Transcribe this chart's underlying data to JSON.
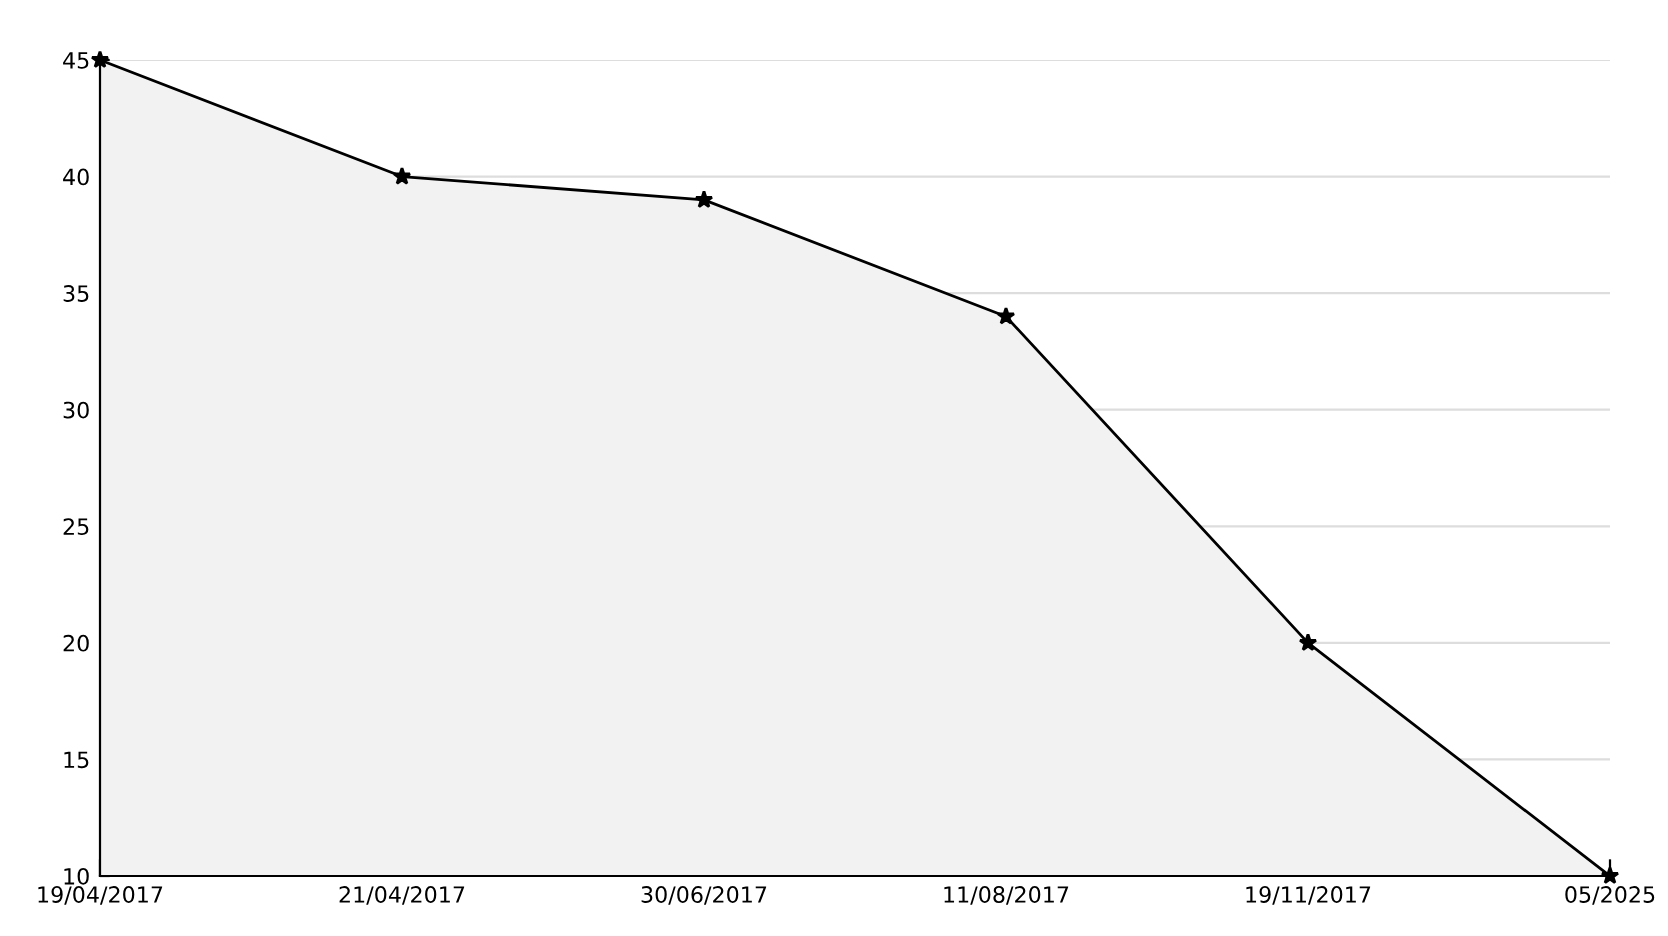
{
  "chart_data": {
    "type": "area",
    "categories": [
      "19/04/2017",
      "21/04/2017",
      "30/06/2017",
      "11/08/2017",
      "19/11/2017",
      "05/2025"
    ],
    "series": [
      {
        "color": "#000000",
        "values": [
          45,
          40,
          39,
          34,
          20,
          10
        ]
      }
    ],
    "ylim": [
      10,
      45
    ],
    "yticks": [
      10,
      15,
      20,
      25,
      30,
      35,
      40,
      45
    ],
    "grid": "y",
    "marker": "star",
    "line_style": "solid",
    "legend": false
  }
}
